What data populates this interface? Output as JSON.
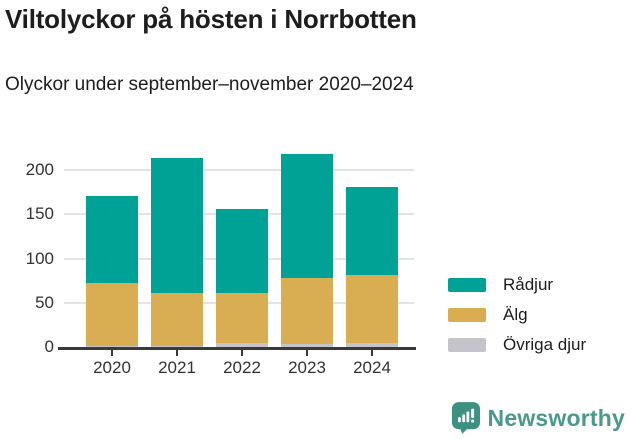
{
  "header": {
    "title": "Viltolyckor på hösten i Norrbotten",
    "subtitle": "Olyckor under september–november 2020–2024"
  },
  "chart_data": {
    "type": "bar",
    "stacked": true,
    "title": "Viltolyckor på hösten i Norrbotten",
    "subtitle": "Olyckor under september–november 2020–2024",
    "categories": [
      "2020",
      "2021",
      "2022",
      "2023",
      "2024"
    ],
    "series": [
      {
        "name": "Övriga djur",
        "color": "#c5c4ca",
        "values": [
          1,
          1,
          4,
          3,
          4
        ]
      },
      {
        "name": "Älg",
        "color": "#d9ad52",
        "values": [
          71,
          60,
          57,
          75,
          77
        ]
      },
      {
        "name": "Rådjur",
        "color": "#00a296",
        "values": [
          99,
          153,
          95,
          140,
          100
        ]
      }
    ],
    "totals": [
      171,
      214,
      156,
      218,
      181
    ],
    "yticks": [
      0,
      50,
      100,
      150,
      200
    ],
    "ylim": [
      0,
      225
    ],
    "grid": true,
    "legend_position": "right",
    "legend_order": [
      "Rådjur",
      "Älg",
      "Övriga djur"
    ],
    "xlabel": "",
    "ylabel": ""
  },
  "footer": {
    "brand": "Newsworthy",
    "brand_text_color": "#4a9a8c",
    "brand_icon_color": "#3c9180"
  },
  "style_colors": {
    "axis": "#3a3a3a",
    "gridline": "#e4e4e6",
    "tick_text": "#333333"
  }
}
